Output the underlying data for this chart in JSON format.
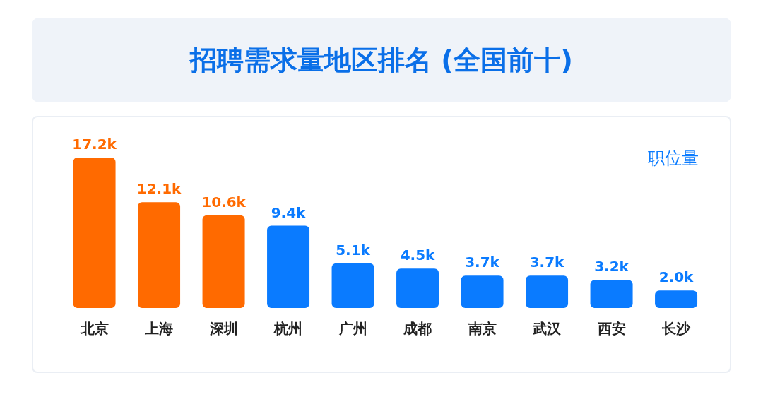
{
  "chart_data": {
    "type": "bar",
    "title": "招聘需求量地区排名 (全国前十)",
    "categories": [
      "北京",
      "上海",
      "深圳",
      "杭州",
      "广州",
      "成都",
      "南京",
      "武汉",
      "西安",
      "长沙"
    ],
    "values": [
      17.2,
      12.1,
      10.6,
      9.4,
      5.1,
      4.5,
      3.7,
      3.7,
      3.2,
      2.0
    ],
    "value_labels": [
      "17.2k",
      "12.1k",
      "10.6k",
      "9.4k",
      "5.1k",
      "4.5k",
      "3.7k",
      "3.7k",
      "3.2k",
      "2.0k"
    ],
    "colors": [
      "#ff6a00",
      "#ff6a00",
      "#ff6a00",
      "#0a7bff",
      "#0a7bff",
      "#0a7bff",
      "#0a7bff",
      "#0a7bff",
      "#0a7bff",
      "#0a7bff"
    ],
    "annotations": [
      "职位量"
    ],
    "grid": false,
    "legend": false
  }
}
